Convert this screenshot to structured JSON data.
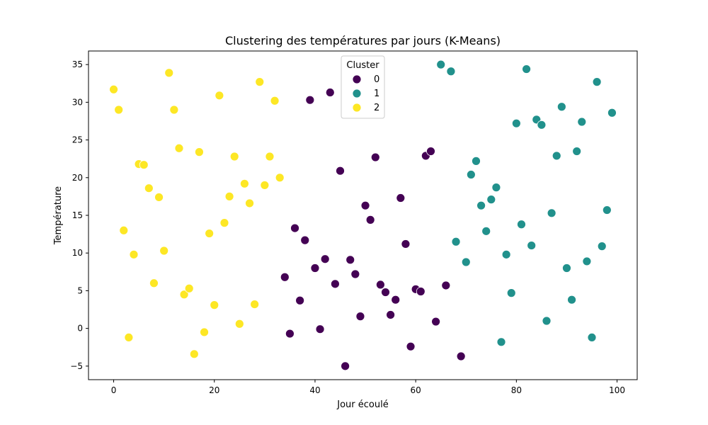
{
  "chart_data": {
    "type": "scatter",
    "title": "Clustering des températures par jours (K-Means)",
    "xlabel": "Jour écoulé",
    "ylabel": "Température",
    "xlim": [
      -5,
      104
    ],
    "ylim": [
      -6.8,
      36.8
    ],
    "xticks": [
      0,
      20,
      40,
      60,
      80,
      100
    ],
    "yticks": [
      -5,
      0,
      5,
      10,
      15,
      20,
      25,
      30,
      35
    ],
    "grid": false,
    "legend": {
      "title": "Cluster",
      "placement": "top-center"
    },
    "series": [
      {
        "name": "0",
        "color": "#440154",
        "points": [
          [
            34,
            6.8
          ],
          [
            35,
            -0.7
          ],
          [
            36,
            13.3
          ],
          [
            37,
            3.7
          ],
          [
            38,
            11.7
          ],
          [
            39,
            30.3
          ],
          [
            40,
            8.0
          ],
          [
            41,
            -0.1
          ],
          [
            42,
            9.2
          ],
          [
            43,
            31.3
          ],
          [
            44,
            5.9
          ],
          [
            45,
            20.9
          ],
          [
            46,
            -5.0
          ],
          [
            47,
            9.1
          ],
          [
            48,
            7.2
          ],
          [
            49,
            1.6
          ],
          [
            50,
            16.3
          ],
          [
            51,
            14.4
          ],
          [
            52,
            22.7
          ],
          [
            53,
            5.8
          ],
          [
            54,
            4.8
          ],
          [
            55,
            1.8
          ],
          [
            56,
            3.8
          ],
          [
            57,
            17.3
          ],
          [
            58,
            11.2
          ],
          [
            59,
            -2.4
          ],
          [
            60,
            5.2
          ],
          [
            61,
            4.9
          ],
          [
            62,
            22.9
          ],
          [
            63,
            23.5
          ],
          [
            64,
            0.9
          ],
          [
            66,
            5.7
          ],
          [
            69,
            -3.7
          ]
        ]
      },
      {
        "name": "1",
        "color": "#21918c",
        "points": [
          [
            65,
            35.0
          ],
          [
            67,
            34.1
          ],
          [
            68,
            11.5
          ],
          [
            70,
            8.8
          ],
          [
            71,
            20.4
          ],
          [
            72,
            22.2
          ],
          [
            73,
            16.3
          ],
          [
            74,
            12.9
          ],
          [
            75,
            17.1
          ],
          [
            76,
            18.7
          ],
          [
            77,
            -1.8
          ],
          [
            78,
            9.8
          ],
          [
            79,
            4.7
          ],
          [
            80,
            27.2
          ],
          [
            81,
            13.8
          ],
          [
            82,
            34.4
          ],
          [
            83,
            11.0
          ],
          [
            84,
            27.7
          ],
          [
            85,
            27.0
          ],
          [
            86,
            1.0
          ],
          [
            87,
            15.3
          ],
          [
            88,
            22.9
          ],
          [
            89,
            29.4
          ],
          [
            90,
            8.0
          ],
          [
            91,
            3.8
          ],
          [
            92,
            23.5
          ],
          [
            93,
            27.4
          ],
          [
            94,
            8.9
          ],
          [
            95,
            -1.2
          ],
          [
            96,
            32.7
          ],
          [
            97,
            10.9
          ],
          [
            98,
            15.7
          ],
          [
            99,
            28.6
          ]
        ]
      },
      {
        "name": "2",
        "color": "#fde725",
        "points": [
          [
            0,
            31.7
          ],
          [
            1,
            29.0
          ],
          [
            2,
            13.0
          ],
          [
            3,
            -1.2
          ],
          [
            4,
            9.8
          ],
          [
            5,
            21.8
          ],
          [
            6,
            21.7
          ],
          [
            7,
            18.6
          ],
          [
            8,
            6.0
          ],
          [
            9,
            17.4
          ],
          [
            10,
            10.3
          ],
          [
            11,
            33.9
          ],
          [
            12,
            29.0
          ],
          [
            13,
            23.9
          ],
          [
            14,
            4.5
          ],
          [
            15,
            5.3
          ],
          [
            16,
            -3.4
          ],
          [
            17,
            23.4
          ],
          [
            18,
            -0.5
          ],
          [
            19,
            12.6
          ],
          [
            20,
            3.1
          ],
          [
            21,
            30.9
          ],
          [
            22,
            14.0
          ],
          [
            23,
            17.5
          ],
          [
            24,
            22.8
          ],
          [
            25,
            0.6
          ],
          [
            26,
            19.2
          ],
          [
            27,
            16.6
          ],
          [
            28,
            3.2
          ],
          [
            29,
            32.7
          ],
          [
            30,
            19.0
          ],
          [
            31,
            22.8
          ],
          [
            32,
            30.2
          ],
          [
            33,
            20.0
          ]
        ]
      }
    ]
  }
}
